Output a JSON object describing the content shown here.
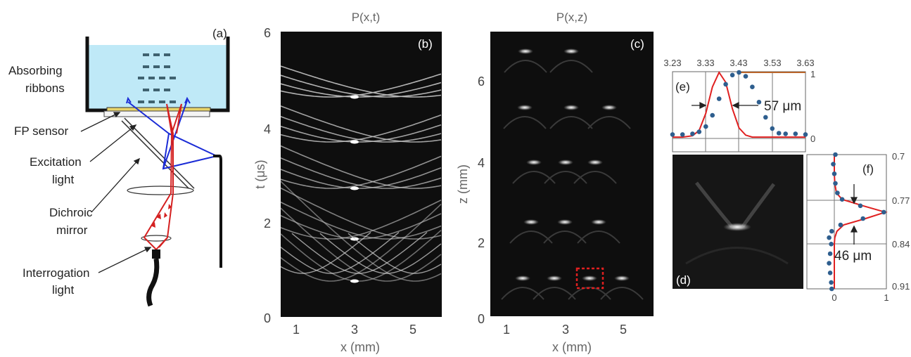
{
  "panel_a": {
    "tag": "(a)",
    "labels": {
      "ribbons_l1": "Absorbing",
      "ribbons_l2": "ribbons",
      "fp": "FP sensor",
      "exc_l1": "Excitation",
      "exc_l2": "light",
      "dich_l1": "Dichroic",
      "dich_l2": "mirror",
      "int_l1": "Interrogation",
      "int_l2": "light"
    },
    "colors": {
      "water": "#bfe9f7",
      "sensor": "#e8d46a",
      "excitation": "#1a2bd6",
      "interrogation": "#d42020"
    }
  },
  "panel_b": {
    "tag": "(b)",
    "title": "P(x,t)",
    "ylabel": "t (μs)",
    "xlabel": "x (mm)",
    "yticks": [
      "6",
      "4",
      "2",
      "0"
    ],
    "xticks": [
      "1",
      "3",
      "5"
    ]
  },
  "panel_c": {
    "tag": "(c)",
    "title": "P(x,z)",
    "ylabel": "z (mm)",
    "xlabel": "x (mm)",
    "yticks": [
      "6",
      "4",
      "2",
      "0"
    ],
    "xticks": [
      "1",
      "3",
      "5"
    ]
  },
  "panel_d": {
    "tag": "(d)"
  },
  "panel_e": {
    "tag": "(e)",
    "top_ticks": [
      "3.23",
      "3.33",
      "3.43",
      "3.53",
      "3.63"
    ],
    "right_ticks": [
      "1",
      "0"
    ],
    "annotation": "57 μm"
  },
  "panel_f": {
    "tag": "(f)",
    "right_ticks": [
      "0.7",
      "0.77",
      "0.84",
      "0.91"
    ],
    "bottom_ticks": [
      "0",
      "1"
    ],
    "annotation": "46 μm"
  },
  "chart_data": [
    {
      "type": "line",
      "panel": "(e)",
      "x": [
        3.23,
        3.26,
        3.29,
        3.31,
        3.33,
        3.35,
        3.37,
        3.39,
        3.41,
        3.43,
        3.45,
        3.47,
        3.49,
        3.51,
        3.53,
        3.55,
        3.57,
        3.6,
        3.63
      ],
      "series": [
        {
          "style": "line",
          "color": "#e02020",
          "values": [
            0.02,
            0.02,
            0.04,
            0.12,
            0.38,
            0.78,
            1.0,
            0.85,
            0.45,
            0.16,
            0.05,
            0.02,
            0.02,
            0.02,
            0.02,
            0.02,
            0.02,
            0.02,
            0.02
          ]
        },
        {
          "style": "dots",
          "color": "#2e5e8e",
          "values": [
            0.06,
            0.06,
            0.07,
            0.1,
            0.18,
            0.35,
            0.6,
            0.82,
            0.96,
            1.0,
            0.94,
            0.78,
            0.55,
            0.32,
            0.15,
            0.08,
            0.07,
            0.07,
            0.06
          ]
        }
      ],
      "xlim": [
        3.23,
        3.63
      ],
      "ylim": [
        0,
        1
      ]
    },
    {
      "type": "line",
      "panel": "(f)",
      "orientation": "horizontal",
      "z": [
        0.7,
        0.715,
        0.73,
        0.745,
        0.76,
        0.77,
        0.78,
        0.79,
        0.8,
        0.81,
        0.82,
        0.83,
        0.84,
        0.855,
        0.87,
        0.885,
        0.9,
        0.91
      ],
      "series": [
        {
          "style": "line",
          "color": "#e02020",
          "values": [
            0.0,
            0.0,
            0.0,
            0.01,
            0.04,
            0.15,
            0.55,
            0.98,
            0.6,
            0.18,
            0.05,
            0.01,
            0.0,
            0.0,
            0.0,
            0.0,
            0.0,
            0.0
          ]
        },
        {
          "style": "dots",
          "color": "#2e5e8e",
          "values": [
            0.02,
            -0.02,
            0.0,
            0.02,
            0.06,
            0.15,
            0.5,
            0.95,
            0.55,
            0.12,
            -0.05,
            -0.1,
            -0.06,
            -0.08,
            -0.1,
            -0.08,
            -0.06,
            -0.05
          ]
        }
      ],
      "xlim": [
        -0.3,
        1
      ],
      "ylim": [
        0.7,
        0.91
      ]
    }
  ]
}
